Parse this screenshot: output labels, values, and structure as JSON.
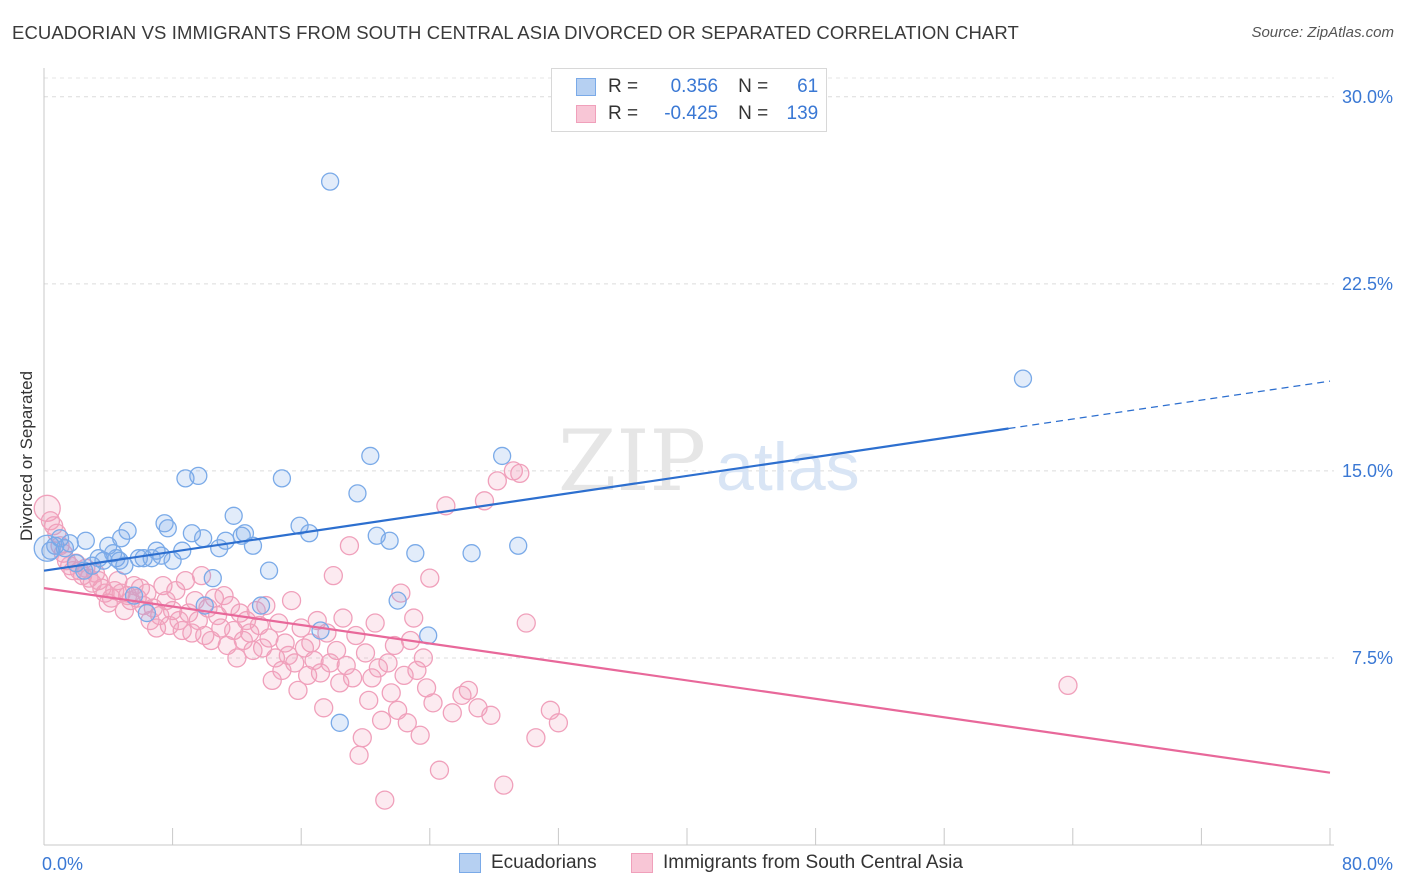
{
  "title": "ECUADORIAN VS IMMIGRANTS FROM SOUTH CENTRAL ASIA DIVORCED OR SEPARATED CORRELATION CHART",
  "source": "Source: ZipAtlas.com",
  "watermark": {
    "zip": "ZIP",
    "atlas": "atlas"
  },
  "legend": {
    "r_label": "R =",
    "n_label": "N =",
    "rows": [
      {
        "r": "0.356",
        "n": "61"
      },
      {
        "r": "-0.425",
        "n": "139"
      }
    ]
  },
  "chart_data": {
    "type": "scatter",
    "title": "ECUADORIAN VS IMMIGRANTS FROM SOUTH CENTRAL ASIA DIVORCED OR SEPARATED CORRELATION CHART",
    "xlabel": "",
    "ylabel": "Divorced or Separated",
    "xlim": [
      0,
      80
    ],
    "ylim": [
      0,
      30
    ],
    "x_tick_labels": [
      "0.0%",
      "80.0%"
    ],
    "y_ticks": [
      7.5,
      15.0,
      22.5,
      30.0
    ],
    "y_tick_labels": [
      "7.5%",
      "15.0%",
      "22.5%",
      "30.0%"
    ],
    "grid": true,
    "legend_position": "bottom",
    "colors": {
      "ecuadorians": "#7aaae8",
      "immigrants": "#f0a0bb",
      "ecuadorians_line": "#2d6fcf",
      "immigrants_line": "#e8689a"
    },
    "series": [
      {
        "name": "Ecuadorians",
        "r": 0.356,
        "n": 61,
        "trend": {
          "x": [
            0,
            60
          ],
          "y": [
            11.0,
            16.7
          ],
          "dashed_to": [
            80,
            18.6
          ]
        },
        "points": [
          [
            0.4,
            11.8
          ],
          [
            0.7,
            12.0
          ],
          [
            1.0,
            12.3
          ],
          [
            1.3,
            11.9
          ],
          [
            1.6,
            12.1
          ],
          [
            2.0,
            11.3
          ],
          [
            2.5,
            11.0
          ],
          [
            2.6,
            12.2
          ],
          [
            3.0,
            11.2
          ],
          [
            3.4,
            11.5
          ],
          [
            3.7,
            11.4
          ],
          [
            4.0,
            12.0
          ],
          [
            4.3,
            11.7
          ],
          [
            4.5,
            11.5
          ],
          [
            4.7,
            11.4
          ],
          [
            4.8,
            12.3
          ],
          [
            5.0,
            11.2
          ],
          [
            5.2,
            12.6
          ],
          [
            5.6,
            10.0
          ],
          [
            5.9,
            11.5
          ],
          [
            6.2,
            11.5
          ],
          [
            6.4,
            9.3
          ],
          [
            6.7,
            11.5
          ],
          [
            7.0,
            11.8
          ],
          [
            7.3,
            11.6
          ],
          [
            7.5,
            12.9
          ],
          [
            7.7,
            12.7
          ],
          [
            8.0,
            11.4
          ],
          [
            8.6,
            11.8
          ],
          [
            8.8,
            14.7
          ],
          [
            9.2,
            12.5
          ],
          [
            9.6,
            14.8
          ],
          [
            9.9,
            12.3
          ],
          [
            10.0,
            9.6
          ],
          [
            10.5,
            10.7
          ],
          [
            10.9,
            11.9
          ],
          [
            11.3,
            12.2
          ],
          [
            11.8,
            13.2
          ],
          [
            12.3,
            12.4
          ],
          [
            12.5,
            12.5
          ],
          [
            13.0,
            12.0
          ],
          [
            13.5,
            9.6
          ],
          [
            14.0,
            11.0
          ],
          [
            14.8,
            14.7
          ],
          [
            15.9,
            12.8
          ],
          [
            16.5,
            12.5
          ],
          [
            17.2,
            8.6
          ],
          [
            17.8,
            26.6
          ],
          [
            18.4,
            4.9
          ],
          [
            19.5,
            14.1
          ],
          [
            20.3,
            15.6
          ],
          [
            20.7,
            12.4
          ],
          [
            21.5,
            12.2
          ],
          [
            22.0,
            9.8
          ],
          [
            23.1,
            11.7
          ],
          [
            23.9,
            8.4
          ],
          [
            26.6,
            11.7
          ],
          [
            28.5,
            15.6
          ],
          [
            29.5,
            12.0
          ],
          [
            60.9,
            18.7
          ],
          [
            0.2,
            11.9
          ]
        ]
      },
      {
        "name": "Immigrants from South Central Asia",
        "r": -0.425,
        "n": 139,
        "trend": {
          "x": [
            0,
            80
          ],
          "y": [
            10.3,
            2.9
          ]
        },
        "points": [
          [
            0.2,
            13.5
          ],
          [
            0.4,
            13.0
          ],
          [
            0.6,
            12.8
          ],
          [
            0.8,
            12.5
          ],
          [
            1.0,
            12.0
          ],
          [
            1.2,
            11.7
          ],
          [
            1.4,
            11.4
          ],
          [
            1.6,
            11.2
          ],
          [
            1.8,
            11.0
          ],
          [
            2.0,
            11.3
          ],
          [
            2.2,
            11.0
          ],
          [
            2.4,
            10.8
          ],
          [
            2.6,
            11.1
          ],
          [
            2.8,
            10.7
          ],
          [
            3.0,
            10.5
          ],
          [
            3.2,
            10.9
          ],
          [
            3.4,
            10.6
          ],
          [
            3.6,
            10.3
          ],
          [
            3.8,
            10.1
          ],
          [
            4.0,
            9.7
          ],
          [
            4.2,
            9.9
          ],
          [
            4.4,
            10.2
          ],
          [
            4.6,
            10.6
          ],
          [
            4.8,
            10.1
          ],
          [
            5.0,
            9.4
          ],
          [
            5.2,
            10.0
          ],
          [
            5.4,
            9.8
          ],
          [
            5.6,
            10.4
          ],
          [
            5.8,
            9.9
          ],
          [
            6.0,
            10.3
          ],
          [
            6.2,
            9.6
          ],
          [
            6.4,
            10.1
          ],
          [
            6.6,
            9.0
          ],
          [
            6.8,
            9.5
          ],
          [
            7.0,
            8.7
          ],
          [
            7.2,
            9.2
          ],
          [
            7.4,
            10.4
          ],
          [
            7.6,
            9.8
          ],
          [
            7.8,
            8.8
          ],
          [
            8.0,
            9.4
          ],
          [
            8.2,
            10.2
          ],
          [
            8.4,
            9.0
          ],
          [
            8.6,
            8.6
          ],
          [
            8.8,
            10.6
          ],
          [
            9.0,
            9.3
          ],
          [
            9.2,
            8.5
          ],
          [
            9.4,
            9.8
          ],
          [
            9.6,
            9.0
          ],
          [
            9.8,
            10.8
          ],
          [
            10.0,
            8.4
          ],
          [
            10.2,
            9.5
          ],
          [
            10.4,
            8.2
          ],
          [
            10.6,
            9.9
          ],
          [
            10.8,
            9.2
          ],
          [
            11.0,
            8.7
          ],
          [
            11.2,
            10.0
          ],
          [
            11.4,
            8.0
          ],
          [
            11.6,
            9.6
          ],
          [
            11.8,
            8.6
          ],
          [
            12.0,
            7.5
          ],
          [
            12.2,
            9.3
          ],
          [
            12.4,
            8.2
          ],
          [
            12.6,
            9.0
          ],
          [
            12.8,
            8.5
          ],
          [
            13.0,
            7.8
          ],
          [
            13.2,
            9.4
          ],
          [
            13.4,
            8.8
          ],
          [
            13.6,
            7.9
          ],
          [
            13.8,
            9.6
          ],
          [
            14.0,
            8.3
          ],
          [
            14.2,
            6.6
          ],
          [
            14.4,
            7.5
          ],
          [
            14.6,
            8.9
          ],
          [
            14.8,
            7.0
          ],
          [
            15.0,
            8.1
          ],
          [
            15.2,
            7.6
          ],
          [
            15.4,
            9.8
          ],
          [
            15.6,
            7.3
          ],
          [
            15.8,
            6.2
          ],
          [
            16.0,
            8.7
          ],
          [
            16.2,
            7.9
          ],
          [
            16.4,
            6.8
          ],
          [
            16.6,
            8.1
          ],
          [
            16.8,
            7.4
          ],
          [
            17.0,
            9.0
          ],
          [
            17.2,
            6.9
          ],
          [
            17.4,
            5.5
          ],
          [
            17.6,
            8.5
          ],
          [
            17.8,
            7.3
          ],
          [
            18.0,
            10.8
          ],
          [
            18.2,
            7.8
          ],
          [
            18.4,
            6.5
          ],
          [
            18.6,
            9.1
          ],
          [
            18.8,
            7.2
          ],
          [
            19.0,
            12.0
          ],
          [
            19.2,
            6.7
          ],
          [
            19.4,
            8.4
          ],
          [
            19.6,
            3.6
          ],
          [
            19.8,
            4.3
          ],
          [
            20.0,
            7.7
          ],
          [
            20.2,
            5.8
          ],
          [
            20.4,
            6.7
          ],
          [
            20.6,
            8.9
          ],
          [
            20.8,
            7.1
          ],
          [
            21.0,
            5.0
          ],
          [
            21.2,
            1.8
          ],
          [
            21.4,
            7.3
          ],
          [
            21.6,
            6.1
          ],
          [
            21.8,
            8.0
          ],
          [
            22.0,
            5.4
          ],
          [
            22.2,
            10.1
          ],
          [
            22.4,
            6.8
          ],
          [
            22.6,
            4.9
          ],
          [
            22.8,
            8.2
          ],
          [
            23.0,
            9.1
          ],
          [
            23.2,
            7.0
          ],
          [
            23.4,
            4.4
          ],
          [
            23.6,
            7.5
          ],
          [
            23.8,
            6.3
          ],
          [
            24.0,
            10.7
          ],
          [
            24.2,
            5.7
          ],
          [
            24.6,
            3.0
          ],
          [
            25.0,
            13.6
          ],
          [
            25.4,
            5.3
          ],
          [
            26.0,
            6.0
          ],
          [
            26.4,
            6.2
          ],
          [
            27.0,
            5.5
          ],
          [
            27.4,
            13.8
          ],
          [
            27.8,
            5.2
          ],
          [
            28.2,
            14.6
          ],
          [
            28.6,
            2.4
          ],
          [
            29.2,
            15.0
          ],
          [
            29.6,
            14.9
          ],
          [
            30.0,
            8.9
          ],
          [
            30.6,
            4.3
          ],
          [
            31.5,
            5.4
          ],
          [
            32.0,
            4.9
          ],
          [
            63.7,
            6.4
          ]
        ]
      }
    ]
  },
  "bottom_legend": {
    "items": [
      {
        "label": "Ecuadorians"
      },
      {
        "label": "Immigrants from South Central Asia"
      }
    ]
  }
}
